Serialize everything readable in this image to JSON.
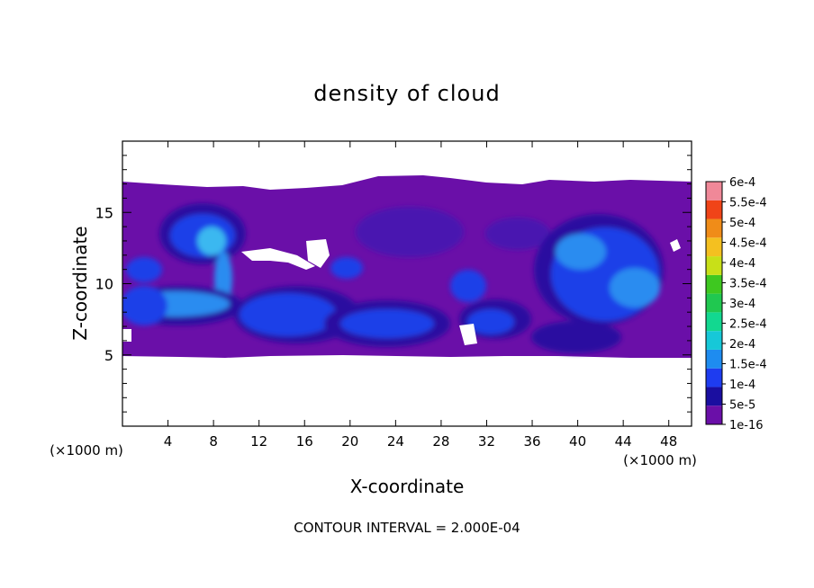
{
  "chart_data": {
    "type": "heatmap",
    "title": "density of cloud",
    "xlabel": "X-coordinate",
    "ylabel": "Z-coordinate",
    "x_unit_label": "(×1000 m)",
    "y_unit_label": "(×1000 m)",
    "footer": "CONTOUR INTERVAL = 2.000E-04",
    "xlim": [
      0,
      50
    ],
    "ylim": [
      0,
      20
    ],
    "x_ticks": [
      4,
      8,
      12,
      16,
      20,
      24,
      28,
      32,
      36,
      40,
      44,
      48
    ],
    "y_ticks": [
      5,
      10,
      15
    ],
    "x_tick_labels": [
      "4",
      "8",
      "12",
      "16",
      "20",
      "24",
      "28",
      "32",
      "36",
      "40",
      "44",
      "48"
    ],
    "y_tick_labels": [
      "5",
      "10",
      "15"
    ],
    "colorbar": {
      "labels": [
        "1e-16",
        "5e-5",
        "1e-4",
        "1.5e-4",
        "2e-4",
        "2.5e-4",
        "3e-4",
        "3.5e-4",
        "4e-4",
        "4.5e-4",
        "5e-4",
        "5.5e-4",
        "6e-4"
      ],
      "colors": [
        "#6a0fa8",
        "#1a0ea0",
        "#1e3cf0",
        "#1e8cf0",
        "#16c8d8",
        "#12d890",
        "#20c850",
        "#3ec820",
        "#c8e018",
        "#f4c020",
        "#f08c18",
        "#f04418",
        "#f08898"
      ]
    },
    "cloud_layer": {
      "base_km": 5,
      "top_km": 17
    },
    "colors": {
      "background": "#6a0fa8",
      "dark": "#2a10a0",
      "mid": "#1f40e8",
      "light": "#2a8cf0",
      "bright": "#3ab8f0"
    }
  }
}
